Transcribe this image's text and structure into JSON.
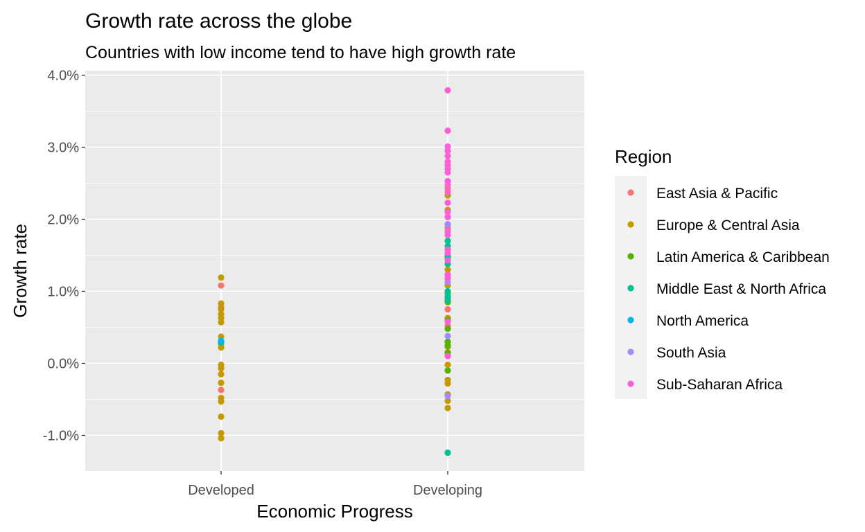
{
  "chart_data": {
    "type": "scatter",
    "title": "Growth rate across the globe",
    "subtitle": "Countries with low income tend to have high growth rate",
    "xlabel": "Economic Progress",
    "ylabel": "Growth rate",
    "categories": [
      "Developed",
      "Developing"
    ],
    "y_ticks": [
      -1.0,
      0.0,
      1.0,
      2.0,
      3.0,
      4.0
    ],
    "y_tick_labels": [
      "-1.0%",
      "0.0%",
      "1.0%",
      "2.0%",
      "3.0%",
      "4.0%"
    ],
    "ylim": [
      -1.5,
      4.1
    ],
    "grid": true,
    "legend": {
      "title": "Region",
      "position": "right"
    },
    "series": [
      {
        "name": "East Asia & Pacific",
        "color": "#F8766D",
        "points": [
          [
            "Developed",
            1.08
          ],
          [
            "Developed",
            0.78
          ],
          [
            "Developed",
            -0.37
          ],
          [
            "Developing",
            2.43
          ],
          [
            "Developing",
            1.88
          ],
          [
            "Developing",
            0.75
          ],
          [
            "Developing",
            0.52
          ],
          [
            "Developing",
            0.12
          ],
          [
            "Developing",
            -0.45
          ]
        ]
      },
      {
        "name": "Europe & Central Asia",
        "color": "#C49A00",
        "points": [
          [
            "Developed",
            1.19
          ],
          [
            "Developed",
            0.83
          ],
          [
            "Developed",
            0.75
          ],
          [
            "Developed",
            0.68
          ],
          [
            "Developed",
            0.63
          ],
          [
            "Developed",
            0.57
          ],
          [
            "Developed",
            0.37
          ],
          [
            "Developed",
            0.27
          ],
          [
            "Developed",
            0.22
          ],
          [
            "Developed",
            -0.02
          ],
          [
            "Developed",
            -0.07
          ],
          [
            "Developed",
            -0.15
          ],
          [
            "Developed",
            -0.27
          ],
          [
            "Developed",
            -0.48
          ],
          [
            "Developed",
            -0.53
          ],
          [
            "Developed",
            -0.74
          ],
          [
            "Developed",
            -0.97
          ],
          [
            "Developed",
            -1.04
          ],
          [
            "Developing",
            2.33
          ],
          [
            "Developing",
            2.13
          ],
          [
            "Developing",
            2.03
          ],
          [
            "Developing",
            1.83
          ],
          [
            "Developing",
            1.38
          ],
          [
            "Developing",
            1.3
          ],
          [
            "Developing",
            1.23
          ],
          [
            "Developing",
            1.08
          ],
          [
            "Developing",
            0.9
          ],
          [
            "Developing",
            0.63
          ],
          [
            "Developing",
            0.23
          ],
          [
            "Developing",
            -0.02
          ],
          [
            "Developing",
            -0.23
          ],
          [
            "Developing",
            -0.28
          ],
          [
            "Developing",
            -0.43
          ],
          [
            "Developing",
            -0.52
          ],
          [
            "Developing",
            -0.62
          ]
        ]
      },
      {
        "name": "Latin America & Caribbean",
        "color": "#53B400",
        "points": [
          [
            "Developing",
            1.5
          ],
          [
            "Developing",
            1.45
          ],
          [
            "Developing",
            1.18
          ],
          [
            "Developing",
            0.98
          ],
          [
            "Developing",
            0.85
          ],
          [
            "Developing",
            0.6
          ],
          [
            "Developing",
            0.48
          ],
          [
            "Developing",
            0.3
          ],
          [
            "Developing",
            0.25
          ],
          [
            "Developing",
            0.15
          ],
          [
            "Developing",
            -0.1
          ]
        ]
      },
      {
        "name": "Middle East & North Africa",
        "color": "#00C094",
        "points": [
          [
            "Developed",
            0.29
          ],
          [
            "Developing",
            1.93
          ],
          [
            "Developing",
            1.7
          ],
          [
            "Developing",
            1.63
          ],
          [
            "Developing",
            1.48
          ],
          [
            "Developing",
            1.38
          ],
          [
            "Developing",
            1.0
          ],
          [
            "Developing",
            0.93
          ],
          [
            "Developing",
            0.88
          ],
          [
            "Developing",
            -1.24
          ]
        ]
      },
      {
        "name": "North America",
        "color": "#00B6EB",
        "points": [
          [
            "Developed",
            0.31
          ]
        ]
      },
      {
        "name": "South Asia",
        "color": "#A58AFF",
        "points": [
          [
            "Developing",
            1.93
          ],
          [
            "Developing",
            1.58
          ],
          [
            "Developing",
            1.13
          ],
          [
            "Developing",
            0.38
          ],
          [
            "Developing",
            -0.45
          ]
        ]
      },
      {
        "name": "Sub-Saharan Africa",
        "color": "#FB61D7",
        "points": [
          [
            "Developing",
            3.79
          ],
          [
            "Developing",
            3.23
          ],
          [
            "Developing",
            3.01
          ],
          [
            "Developing",
            2.95
          ],
          [
            "Developing",
            2.88
          ],
          [
            "Developing",
            2.8
          ],
          [
            "Developing",
            2.75
          ],
          [
            "Developing",
            2.7
          ],
          [
            "Developing",
            2.65
          ],
          [
            "Developing",
            2.53
          ],
          [
            "Developing",
            2.48
          ],
          [
            "Developing",
            2.38
          ],
          [
            "Developing",
            2.23
          ],
          [
            "Developing",
            2.1
          ],
          [
            "Developing",
            2.03
          ],
          [
            "Developing",
            1.83
          ],
          [
            "Developing",
            1.78
          ],
          [
            "Developing",
            1.58
          ],
          [
            "Developing",
            1.53
          ],
          [
            "Developing",
            1.43
          ],
          [
            "Developing",
            1.23
          ],
          [
            "Developing",
            1.18
          ],
          [
            "Developing",
            0.58
          ],
          [
            "Developing",
            0.1
          ]
        ]
      }
    ]
  }
}
